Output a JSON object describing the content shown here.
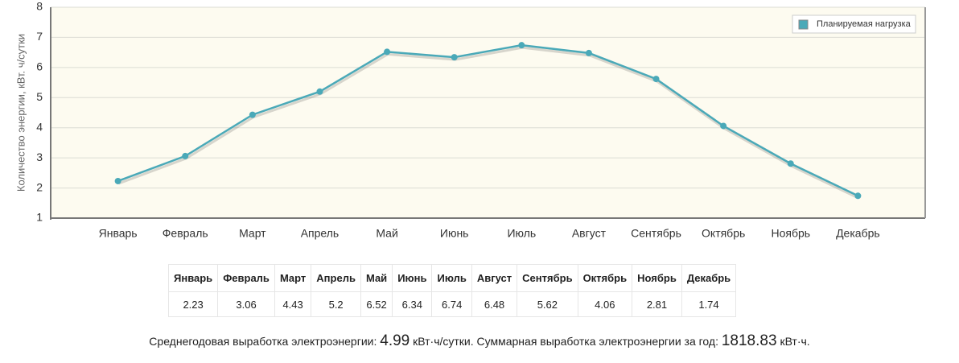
{
  "chart_data": {
    "type": "line",
    "y_label": "Количество энергии, кВт. ч/сутки",
    "categories": [
      "Январь",
      "Февраль",
      "Март",
      "Апрель",
      "Май",
      "Июнь",
      "Июль",
      "Август",
      "Сентябрь",
      "Октябрь",
      "Ноябрь",
      "Декабрь"
    ],
    "series": [
      {
        "name": "Планируемая нагрузка",
        "color": "#4aa9b8",
        "values": [
          2.23,
          3.06,
          4.43,
          5.2,
          6.52,
          6.34,
          6.74,
          6.48,
          5.62,
          4.06,
          2.81,
          1.74
        ]
      }
    ],
    "ylim": [
      1,
      8
    ],
    "yticks": [
      1,
      2,
      3,
      4,
      5,
      6,
      7,
      8
    ],
    "grid": true,
    "legend": "top-right"
  },
  "summary": {
    "average_label": "Среднегодовая выработка электроэнергии:",
    "average": 4.99,
    "average_unit": "кВт·ч/сутки.",
    "total_label": "Суммарная выработка электроэнергии за год:",
    "total": 1818.83,
    "total_unit": "кВт·ч."
  }
}
